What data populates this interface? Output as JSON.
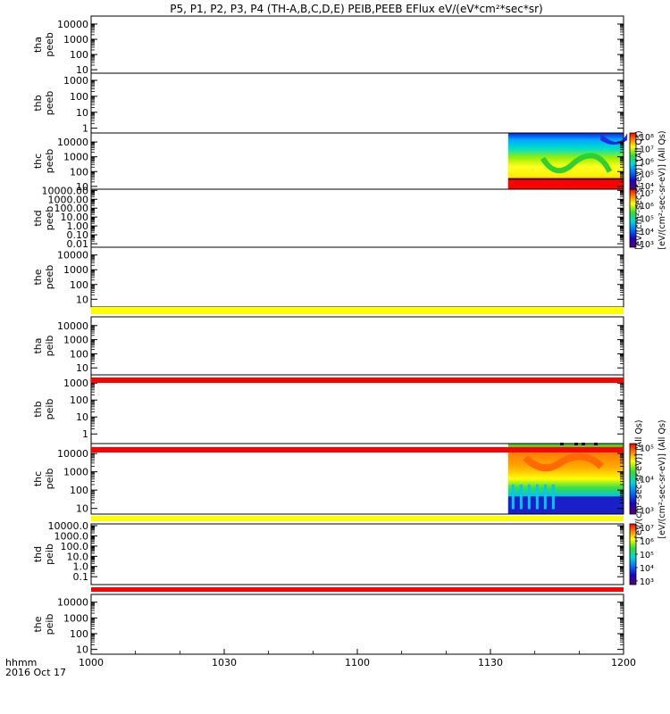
{
  "chart_data": {
    "type": "heatmap",
    "title": "P5, P1, P2, P3, P4 (TH-A,B,C,D,E) PEIB,PEEB EFlux eV/(eV*cm²*sec*sr)",
    "x_axis": {
      "ticks": [
        "1000",
        "1030",
        "1100",
        "1130",
        "1200"
      ],
      "label_line1": "hhmm",
      "label_line2": "2016 Oct 17"
    },
    "colorbars": [
      {
        "label": "[eV/(cm²-sec-sr-eV)] (All Qs)",
        "ticks": [
          "10⁴",
          "10⁵",
          "10⁶",
          "10⁷",
          "10⁸"
        ]
      },
      {
        "label": "[eV/(cm²-sec-sr-eV)] (All Qs)",
        "ticks": [
          "10³",
          "10⁴",
          "10⁵",
          "10⁶",
          "10⁷"
        ]
      },
      {
        "label": "[eV/(cm²-sec-sr-eV)] (All Qs)",
        "ticks": [
          "10³",
          "10⁴",
          "10⁵"
        ]
      },
      {
        "label": "[eV/(cm²-sec-sr-eV)] (All Qs)",
        "ticks": [
          "10³",
          "10⁴",
          "10⁵",
          "10⁶",
          "10⁷"
        ]
      }
    ],
    "panels": [
      {
        "label1": "tha",
        "label2": "peeb",
        "yticks": [
          "10",
          "100",
          "1000",
          "10000"
        ],
        "has_data": false
      },
      {
        "label1": "thb",
        "label2": "peeb",
        "yticks": [
          "1",
          "10",
          "100",
          "1000"
        ],
        "has_data": false
      },
      {
        "label1": "thc",
        "label2": "peeb",
        "yticks": [
          "10",
          "100",
          "1000",
          "10000"
        ],
        "has_data": true,
        "data_start": "1134",
        "data_end": "1200"
      },
      {
        "label1": "thd",
        "label2": "peeb",
        "yticks": [
          "0.01",
          "0.10",
          "1.00",
          "10.00",
          "100.00",
          "1000.00",
          "10000.00"
        ],
        "has_data": false
      },
      {
        "label1": "the",
        "label2": "peeb",
        "yticks": [
          "10",
          "100",
          "1000",
          "10000"
        ],
        "has_data": false
      },
      {
        "label1": "tha",
        "label2": "peib",
        "yticks": [
          "10",
          "100",
          "1000",
          "10000"
        ],
        "has_data": false
      },
      {
        "label1": "thb",
        "label2": "peib",
        "yticks": [
          "1",
          "10",
          "100",
          "1000"
        ],
        "has_data": false
      },
      {
        "label1": "thc",
        "label2": "peib",
        "yticks": [
          "10",
          "100",
          "1000",
          "10000"
        ],
        "has_data": true,
        "data_start": "1134",
        "data_end": "1200"
      },
      {
        "label1": "thd",
        "label2": "peib",
        "yticks": [
          "0.1",
          "1.0",
          "10.0",
          "100.0",
          "1000.0",
          "10000.0"
        ],
        "has_data": false
      },
      {
        "label1": "the",
        "label2": "peib",
        "yticks": [
          "10",
          "100",
          "1000",
          "10000"
        ],
        "has_data": false
      }
    ]
  }
}
